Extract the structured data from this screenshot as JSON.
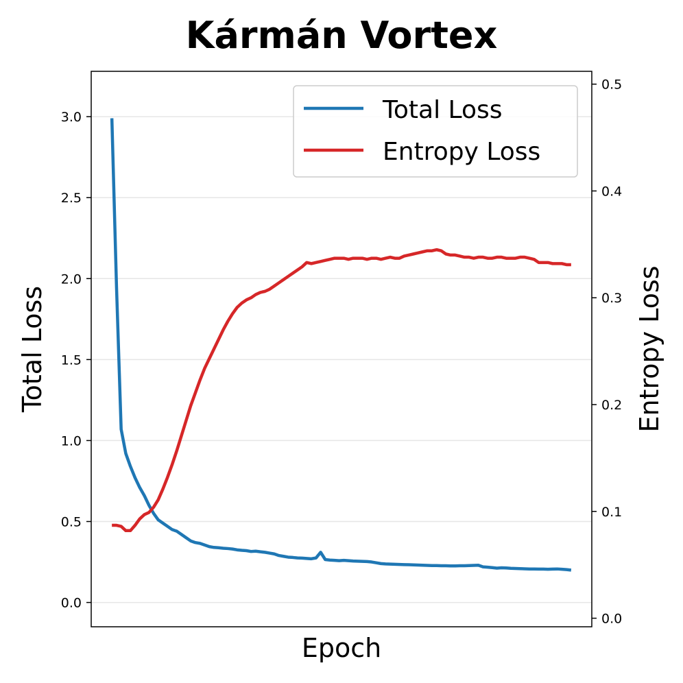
{
  "chart_data": {
    "type": "line",
    "title": "Kármán Vortex",
    "xlabel": "Epoch",
    "ylabel": "Total Loss",
    "y2label": "Entropy Loss",
    "grid": true,
    "legend_position": "top-right",
    "ylim": [
      -0.15,
      3.28
    ],
    "y2lim": [
      -0.008,
      0.512
    ],
    "yticks": [
      "0.0",
      "0.5",
      "1.0",
      "1.5",
      "2.0",
      "2.5",
      "3.0"
    ],
    "y2ticks": [
      "0.0",
      "0.1",
      "0.2",
      "0.3",
      "0.4",
      "0.5"
    ],
    "series": [
      {
        "name": "Total Loss",
        "color": "#1f77b4",
        "axis": "left",
        "x": [
          1,
          2,
          3,
          4,
          5,
          6,
          7,
          8,
          9,
          10,
          11,
          12,
          13,
          14,
          15,
          16,
          17,
          18,
          19,
          20,
          21,
          22,
          23,
          24,
          25,
          26,
          27,
          28,
          29,
          30,
          31,
          32,
          33,
          34,
          35,
          36,
          37,
          38,
          39,
          40,
          41,
          42,
          43,
          44,
          45,
          46,
          47,
          48,
          49,
          50,
          51,
          52,
          53,
          54,
          55,
          56,
          57,
          58,
          59,
          60,
          61,
          62,
          63,
          64,
          65,
          66,
          67,
          68,
          69,
          70,
          71,
          72,
          73,
          74,
          75,
          76,
          77,
          78,
          79,
          80,
          81,
          82,
          83,
          84,
          85,
          86,
          87,
          88,
          89,
          90,
          91,
          92,
          93,
          94,
          95,
          96,
          97,
          98,
          99,
          100
        ],
        "values": [
          2.99,
          1.95,
          1.07,
          0.92,
          0.84,
          0.77,
          0.71,
          0.66,
          0.6,
          0.55,
          0.51,
          0.49,
          0.47,
          0.45,
          0.44,
          0.42,
          0.4,
          0.38,
          0.37,
          0.365,
          0.355,
          0.345,
          0.34,
          0.338,
          0.335,
          0.333,
          0.33,
          0.325,
          0.322,
          0.32,
          0.315,
          0.317,
          0.313,
          0.31,
          0.305,
          0.3,
          0.29,
          0.285,
          0.28,
          0.278,
          0.275,
          0.274,
          0.272,
          0.27,
          0.275,
          0.31,
          0.265,
          0.262,
          0.26,
          0.258,
          0.26,
          0.258,
          0.256,
          0.255,
          0.254,
          0.253,
          0.25,
          0.245,
          0.24,
          0.238,
          0.237,
          0.236,
          0.235,
          0.234,
          0.233,
          0.232,
          0.231,
          0.23,
          0.229,
          0.228,
          0.228,
          0.227,
          0.227,
          0.226,
          0.226,
          0.227,
          0.227,
          0.228,
          0.229,
          0.23,
          0.22,
          0.218,
          0.215,
          0.212,
          0.214,
          0.213,
          0.211,
          0.21,
          0.209,
          0.208,
          0.207,
          0.207,
          0.206,
          0.206,
          0.205,
          0.206,
          0.207,
          0.205,
          0.203,
          0.2
        ]
      },
      {
        "name": "Entropy Loss",
        "color": "#d62728",
        "axis": "right",
        "x": [
          1,
          2,
          3,
          4,
          5,
          6,
          7,
          8,
          9,
          10,
          11,
          12,
          13,
          14,
          15,
          16,
          17,
          18,
          19,
          20,
          21,
          22,
          23,
          24,
          25,
          26,
          27,
          28,
          29,
          30,
          31,
          32,
          33,
          34,
          35,
          36,
          37,
          38,
          39,
          40,
          41,
          42,
          43,
          44,
          45,
          46,
          47,
          48,
          49,
          50,
          51,
          52,
          53,
          54,
          55,
          56,
          57,
          58,
          59,
          60,
          61,
          62,
          63,
          64,
          65,
          66,
          67,
          68,
          69,
          70,
          71,
          72,
          73,
          74,
          75,
          76,
          77,
          78,
          79,
          80,
          81,
          82,
          83,
          84,
          85,
          86,
          87,
          88,
          89,
          90,
          91,
          92,
          93,
          94,
          95,
          96,
          97,
          98,
          99,
          100
        ],
        "values": [
          0.087,
          0.087,
          0.086,
          0.082,
          0.082,
          0.087,
          0.093,
          0.097,
          0.099,
          0.104,
          0.111,
          0.121,
          0.132,
          0.144,
          0.157,
          0.171,
          0.185,
          0.199,
          0.211,
          0.223,
          0.234,
          0.243,
          0.252,
          0.261,
          0.27,
          0.278,
          0.285,
          0.291,
          0.295,
          0.298,
          0.3,
          0.303,
          0.305,
          0.306,
          0.308,
          0.311,
          0.314,
          0.317,
          0.32,
          0.323,
          0.326,
          0.329,
          0.333,
          0.332,
          0.333,
          0.334,
          0.335,
          0.336,
          0.337,
          0.337,
          0.337,
          0.336,
          0.337,
          0.337,
          0.337,
          0.336,
          0.337,
          0.337,
          0.336,
          0.337,
          0.338,
          0.337,
          0.337,
          0.339,
          0.34,
          0.341,
          0.342,
          0.343,
          0.344,
          0.344,
          0.345,
          0.344,
          0.341,
          0.34,
          0.34,
          0.339,
          0.338,
          0.338,
          0.337,
          0.338,
          0.338,
          0.337,
          0.337,
          0.338,
          0.338,
          0.337,
          0.337,
          0.337,
          0.338,
          0.338,
          0.337,
          0.336,
          0.333,
          0.333,
          0.333,
          0.332,
          0.332,
          0.332,
          0.331,
          0.331
        ]
      }
    ]
  }
}
